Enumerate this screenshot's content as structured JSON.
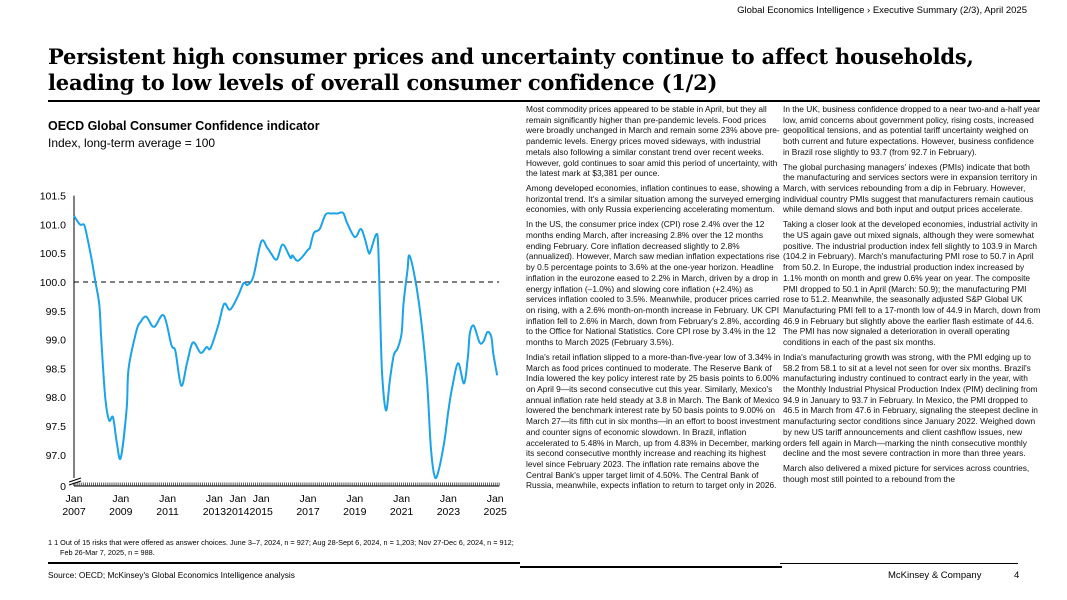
{
  "header": {
    "breadcrumb": "Global Economics Intelligence › Executive Summary (2/3), April 2025"
  },
  "title": "Persistent high consumer prices and uncertainty continue to affect households, leading to low levels of overall consumer confidence (1/2)",
  "chart_data": {
    "type": "line",
    "title": "OECD Global Consumer Confidence indicator",
    "subtitle": "Index, long-term average = 100",
    "xlabel": "",
    "ylabel": "",
    "ylim": [
      96.5,
      101.5
    ],
    "y_axis_break": true,
    "y_ticks": [
      "101.5",
      "101.0",
      "100.5",
      "100.0",
      "99.5",
      "99.0",
      "98.5",
      "98.0",
      "97.5",
      "97.0",
      "0"
    ],
    "x_ticks": [
      {
        "date": "2007-01",
        "label": [
          "Jan",
          "2007"
        ]
      },
      {
        "date": "2009-01",
        "label": [
          "Jan",
          "2009"
        ]
      },
      {
        "date": "2011-01",
        "label": [
          "Jan",
          "2011"
        ]
      },
      {
        "date": "2013-01",
        "label": [
          "Jan",
          "2013"
        ]
      },
      {
        "date": "2014-01",
        "label": [
          "Jan",
          "2014"
        ]
      },
      {
        "date": "2015-01",
        "label": [
          "Jan",
          "2015"
        ]
      },
      {
        "date": "2017-01",
        "label": [
          "Jan",
          "2017"
        ]
      },
      {
        "date": "2019-01",
        "label": [
          "Jan",
          "2019"
        ]
      },
      {
        "date": "2021-01",
        "label": [
          "Jan",
          "2021"
        ]
      },
      {
        "date": "2023-01",
        "label": [
          "Jan",
          "2023"
        ]
      },
      {
        "date": "2025-01",
        "label": [
          "Jan",
          "2025"
        ]
      }
    ],
    "reference_line": 100,
    "series_color": "#1aa3e8",
    "points": [
      [
        "2007-01",
        101.15
      ],
      [
        "2007-04",
        101.0
      ],
      [
        "2007-06",
        101.0
      ],
      [
        "2007-07",
        100.9
      ],
      [
        "2007-10",
        100.4
      ],
      [
        "2007-12",
        100.0
      ],
      [
        "2008-02",
        99.6
      ],
      [
        "2008-03",
        99.0
      ],
      [
        "2008-05",
        98.0
      ],
      [
        "2008-07",
        97.6
      ],
      [
        "2008-09",
        97.65
      ],
      [
        "2008-11",
        97.2
      ],
      [
        "2009-01",
        96.95
      ],
      [
        "2009-04",
        97.8
      ],
      [
        "2009-05",
        98.5
      ],
      [
        "2009-09",
        99.15
      ],
      [
        "2009-11",
        99.3
      ],
      [
        "2010-02",
        99.4
      ],
      [
        "2010-06",
        99.22
      ],
      [
        "2010-11",
        99.42
      ],
      [
        "2011-03",
        98.9
      ],
      [
        "2011-05",
        98.8
      ],
      [
        "2011-08",
        98.2
      ],
      [
        "2011-11",
        98.6
      ],
      [
        "2012-02",
        98.95
      ],
      [
        "2012-06",
        98.77
      ],
      [
        "2012-09",
        98.87
      ],
      [
        "2012-11",
        98.85
      ],
      [
        "2013-03",
        99.25
      ],
      [
        "2013-06",
        99.62
      ],
      [
        "2013-09",
        99.52
      ],
      [
        "2014-01",
        99.75
      ],
      [
        "2014-04",
        99.98
      ],
      [
        "2014-06",
        99.95
      ],
      [
        "2014-09",
        100.1
      ],
      [
        "2015-01",
        100.7
      ],
      [
        "2015-04",
        100.6
      ],
      [
        "2015-06",
        100.5
      ],
      [
        "2015-09",
        100.39
      ],
      [
        "2015-12",
        100.65
      ],
      [
        "2016-04",
        100.42
      ],
      [
        "2016-05",
        100.46
      ],
      [
        "2016-08",
        100.37
      ],
      [
        "2017-01",
        100.56
      ],
      [
        "2017-02",
        100.6
      ],
      [
        "2017-04",
        100.85
      ],
      [
        "2017-07",
        100.92
      ],
      [
        "2017-10",
        101.17
      ],
      [
        "2018-01",
        101.19
      ],
      [
        "2018-04",
        101.19
      ],
      [
        "2018-07",
        101.2
      ],
      [
        "2018-09",
        101.03
      ],
      [
        "2019-01",
        100.78
      ],
      [
        "2019-04",
        100.92
      ],
      [
        "2019-06",
        100.77
      ],
      [
        "2019-08",
        100.52
      ],
      [
        "2019-09",
        100.53
      ],
      [
        "2019-12",
        100.83
      ],
      [
        "2020-01",
        100.62
      ],
      [
        "2020-02",
        99.46
      ],
      [
        "2020-03",
        98.41
      ],
      [
        "2020-05",
        97.77
      ],
      [
        "2020-07",
        98.3
      ],
      [
        "2020-09",
        98.73
      ],
      [
        "2020-11",
        98.85
      ],
      [
        "2021-01",
        99.11
      ],
      [
        "2021-02",
        99.63
      ],
      [
        "2021-04",
        100.2
      ],
      [
        "2021-05",
        100.46
      ],
      [
        "2021-08",
        100.04
      ],
      [
        "2021-11",
        99.34
      ],
      [
        "2022-02",
        98.3
      ],
      [
        "2022-04",
        97.13
      ],
      [
        "2022-06",
        96.62
      ],
      [
        "2022-08",
        96.73
      ],
      [
        "2022-11",
        97.25
      ],
      [
        "2023-01",
        97.77
      ],
      [
        "2023-03",
        98.18
      ],
      [
        "2023-06",
        98.59
      ],
      [
        "2023-09",
        98.24
      ],
      [
        "2023-11",
        98.7
      ],
      [
        "2023-12",
        99.11
      ],
      [
        "2024-02",
        99.24
      ],
      [
        "2024-05",
        98.95
      ],
      [
        "2024-07",
        98.97
      ],
      [
        "2024-09",
        99.13
      ],
      [
        "2024-11",
        99.05
      ],
      [
        "2024-12",
        98.76
      ],
      [
        "2025-02",
        98.38
      ]
    ]
  },
  "columns": [
    [
      "Most commodity prices appeared to be stable in April, but they all remain significantly higher than pre-pandemic levels. Food prices were broadly unchanged in March and remain some 23% above pre-pandemic levels. Energy prices moved sideways, with industrial metals also following a similar constant trend over recent weeks. However, gold continues to soar amid this period of uncertainty, with the latest mark at $3,381 per ounce.",
      "Among developed economies, inflation continues to ease, showing a horizontal trend. It's a similar situation among the surveyed emerging economies, with only Russia experiencing accelerating momentum.",
      "In the US, the consumer price index (CPI) rose 2.4% over the 12 months ending March, after increasing 2.8% over the 12 months ending February. Core inflation decreased slightly to 2.8% (annualized). However, March saw median inflation expectations rise by 0.5 percentage points to 3.6% at the one-year horizon. Headline inflation in the eurozone eased to 2.2% in March, driven by a drop in energy inflation (–1.0%) and slowing core inflation (+2.4%) as services inflation cooled to 3.5%. Meanwhile, producer prices carried on rising, with a 2.6% month-on-month increase in February. UK CPI inflation fell to 2.6% in March, down from February's 2.8%, according to the Office for National Statistics. Core CPI rose by 3.4% in the 12 months to March 2025 (February 3.5%).",
      "India's retail inflation slipped to a more-than-five-year low of 3.34% in March as food prices continued to moderate. The Reserve Bank of India lowered the key policy interest rate by 25 basis points to 6.00% on April 9—its second consecutive cut this year. Similarly, Mexico's annual inflation rate held steady at 3.8 in March. The Bank of Mexico lowered the benchmark interest rate by 50 basis points to 9.00% on March 27—its fifth cut in six months—in an effort to boost investment and counter signs of economic slowdown. In Brazil, inflation accelerated to 5.48% in March, up from 4.83% in December, marking its second consecutive monthly increase and reaching its highest level since February 2023. The inflation rate remains above the Central Bank's upper target limit of 4.50%. The Central Bank of Russia, meanwhile, expects inflation to return to target only in 2026."
    ],
    [
      "In the UK, business confidence dropped to a near two-and a-half year low, amid concerns about government policy, rising costs, increased geopolitical tensions, and as potential tariff uncertainty weighed on both current and future expectations. However, business confidence in Brazil rose slightly to 93.7 (from 92.7 in February).",
      "The global purchasing managers' indexes (PMIs) indicate that both the manufacturing and services sectors were in expansion territory in March, with services rebounding from a dip in February. However, individual country PMIs suggest that manufacturers remain cautious while demand slows and both input and output prices accelerate.",
      "Taking a closer look at the developed economies, industrial activity in the US again gave out mixed signals, although they were somewhat positive. The industrial production index fell slightly to 103.9 in March (104.2 in February). March's manufacturing PMI rose to 50.7 in April from 50.2. In Europe, the industrial production index increased by 1.1% month on month and grew 0.6% year on year. The composite PMI dropped to 50.1 in April (March: 50.9); the manufacturing PMI rose to 51.2. Meanwhile, the seasonally adjusted S&P Global UK Manufacturing PMI fell to a 17-month low of 44.9 in March, down from 46.9 in February but slightly above the earlier flash estimate of 44.6. The PMI has now signaled a deterioration in overall operating conditions in each of the past six months.",
      "India's manufacturing growth was strong, with the PMI edging up to 58.2 from 58.1 to sit at a level not seen for over six months. Brazil's manufacturing industry continued to contract early in the year, with the Monthly Industrial Physical Production Index (PIM) declining from 94.9 in January to 93.7 in February. In Mexico, the PMI dropped to 46.5 in March from 47.6 in February, signaling the steepest decline in manufacturing sector conditions since January 2022. Weighed down by new US tariff announcements and client cashflow issues, new orders fell again in March—marking the ninth consecutive monthly decline and the most severe contraction in more than three years.",
      "March also delivered a mixed picture for services across countries, though most still pointed to a rebound from the"
    ]
  ],
  "footnote": "1 1 Out of 15 risks that were offered as answer choices. June 3–7, 2024, n = 927; Aug 28-Sept 6, 2024, n = 1,203; Nov 27-Dec 6, 2024, n = 912; Feb 26-Mar 7, 2025, n = 988.",
  "source": "Source: OECD; McKinsey's Global Economics Intelligence analysis",
  "brand": "McKinsey & Company",
  "page_number": "4"
}
